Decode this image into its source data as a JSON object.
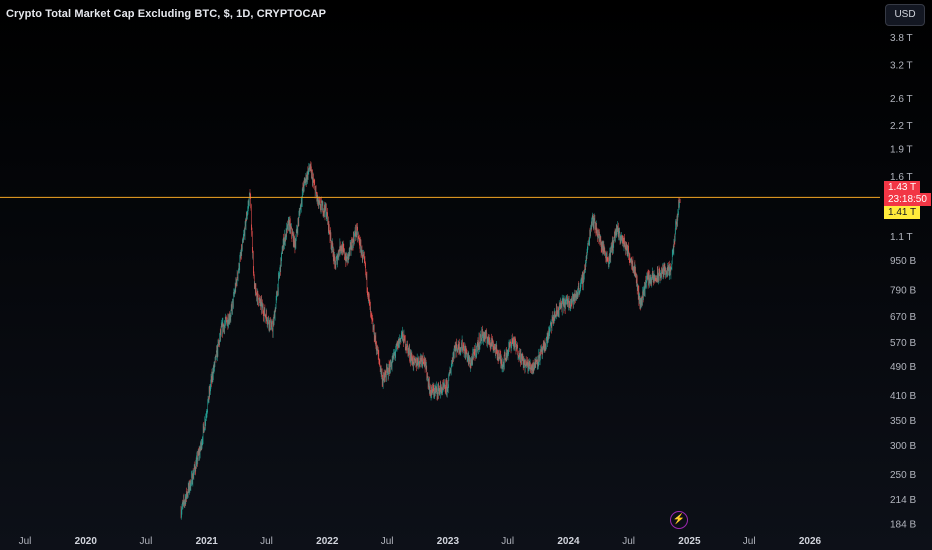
{
  "chart_data": {
    "type": "candlestick",
    "title": "Crypto Total Market Cap Excluding BTC, $, 1D, CRYPTOCAP",
    "currency_button": "USD",
    "scale": "log",
    "current_value_label": "1.43 T",
    "countdown_label": "23:18:50",
    "level_label": "1.41 T",
    "horizontal_level": 1.41,
    "colors": {
      "up": "#26a69a",
      "down": "#ef5350",
      "level_line": "#f5a623",
      "current_tag": "#f23645",
      "level_tag": "#ffeb3b"
    },
    "y_tick_labels": [
      "3.8 T",
      "3.2 T",
      "2.6 T",
      "2.2 T",
      "1.9 T",
      "1.6 T",
      "1.1 T",
      "950 B",
      "790 B",
      "670 B",
      "570 B",
      "490 B",
      "410 B",
      "350 B",
      "300 B",
      "250 B",
      "214 B",
      "184 B"
    ],
    "y_tick_values": [
      3.8,
      3.2,
      2.6,
      2.2,
      1.9,
      1.6,
      1.1,
      0.95,
      0.79,
      0.67,
      0.57,
      0.49,
      0.41,
      0.35,
      0.3,
      0.25,
      0.214,
      0.184
    ],
    "ylim": [
      0.18,
      4.2
    ],
    "x_tick_labels": [
      "Jul",
      "2020",
      "Jul",
      "2021",
      "Jul",
      "2022",
      "Jul",
      "2023",
      "Jul",
      "2024",
      "Jul",
      "2025",
      "Jul",
      "2026"
    ],
    "x_tick_dates": [
      "2019-07-01",
      "2020-01-01",
      "2020-07-01",
      "2021-01-01",
      "2021-07-01",
      "2022-01-01",
      "2022-07-01",
      "2023-01-01",
      "2023-07-01",
      "2024-01-01",
      "2024-07-01",
      "2025-01-01",
      "2025-07-01",
      "2026-01-01"
    ],
    "path": [
      [
        "2020-10-15",
        0.2
      ],
      [
        "2020-11-15",
        0.24
      ],
      [
        "2020-12-15",
        0.3
      ],
      [
        "2021-01-15",
        0.45
      ],
      [
        "2021-02-15",
        0.62
      ],
      [
        "2021-03-15",
        0.68
      ],
      [
        "2021-04-20",
        1.05
      ],
      [
        "2021-05-12",
        1.45
      ],
      [
        "2021-05-25",
        0.8
      ],
      [
        "2021-06-20",
        0.7
      ],
      [
        "2021-07-20",
        0.62
      ],
      [
        "2021-08-20",
        1.05
      ],
      [
        "2021-09-07",
        1.2
      ],
      [
        "2021-09-25",
        1.05
      ],
      [
        "2021-10-20",
        1.5
      ],
      [
        "2021-11-09",
        1.7
      ],
      [
        "2021-12-05",
        1.35
      ],
      [
        "2021-12-28",
        1.3
      ],
      [
        "2022-01-25",
        0.92
      ],
      [
        "2022-02-10",
        1.05
      ],
      [
        "2022-03-01",
        0.95
      ],
      [
        "2022-03-30",
        1.15
      ],
      [
        "2022-04-25",
        0.92
      ],
      [
        "2022-05-12",
        0.68
      ],
      [
        "2022-06-18",
        0.45
      ],
      [
        "2022-07-10",
        0.49
      ],
      [
        "2022-08-14",
        0.6
      ],
      [
        "2022-09-20",
        0.5
      ],
      [
        "2022-10-20",
        0.52
      ],
      [
        "2022-11-09",
        0.42
      ],
      [
        "2022-12-30",
        0.43
      ],
      [
        "2023-01-20",
        0.55
      ],
      [
        "2023-02-15",
        0.56
      ],
      [
        "2023-03-10",
        0.5
      ],
      [
        "2023-04-15",
        0.6
      ],
      [
        "2023-05-15",
        0.57
      ],
      [
        "2023-06-15",
        0.5
      ],
      [
        "2023-07-15",
        0.58
      ],
      [
        "2023-08-20",
        0.5
      ],
      [
        "2023-09-15",
        0.49
      ],
      [
        "2023-10-20",
        0.55
      ],
      [
        "2023-11-15",
        0.66
      ],
      [
        "2023-12-10",
        0.72
      ],
      [
        "2024-01-20",
        0.75
      ],
      [
        "2024-02-15",
        0.85
      ],
      [
        "2024-03-13",
        1.25
      ],
      [
        "2024-04-10",
        1.05
      ],
      [
        "2024-05-01",
        0.95
      ],
      [
        "2024-05-25",
        1.15
      ],
      [
        "2024-06-20",
        1.05
      ],
      [
        "2024-07-20",
        0.9
      ],
      [
        "2024-08-05",
        0.72
      ],
      [
        "2024-08-25",
        0.85
      ],
      [
        "2024-09-20",
        0.85
      ],
      [
        "2024-10-20",
        0.9
      ],
      [
        "2024-11-05",
        0.88
      ],
      [
        "2024-11-20",
        1.15
      ],
      [
        "2024-12-04",
        1.43
      ]
    ]
  }
}
